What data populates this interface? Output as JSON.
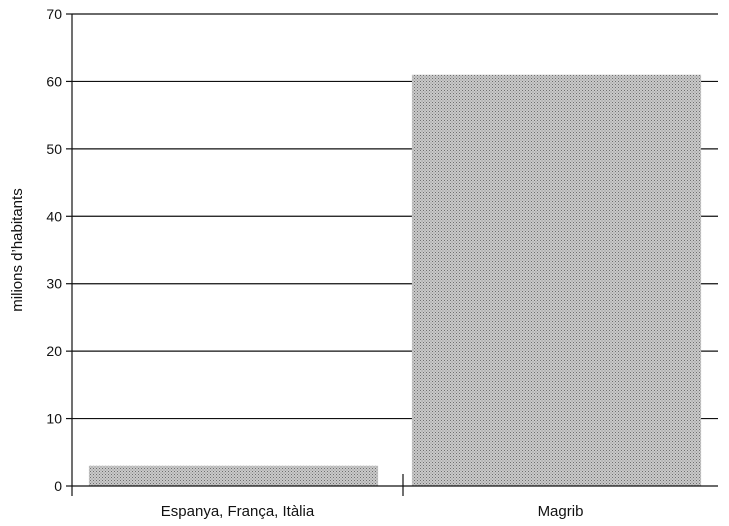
{
  "chart_data": {
    "type": "bar",
    "categories": [
      "Espanya, França, Itàlia",
      "Magrib"
    ],
    "values": [
      3,
      61
    ],
    "title": "",
    "xlabel": "",
    "ylabel": "milions d’habitants",
    "ylim": [
      0,
      70
    ],
    "yticks": [
      0,
      10,
      20,
      30,
      40,
      50,
      60,
      70
    ],
    "grid": true,
    "legend": "none",
    "bar_color": "#b8b8b8"
  }
}
